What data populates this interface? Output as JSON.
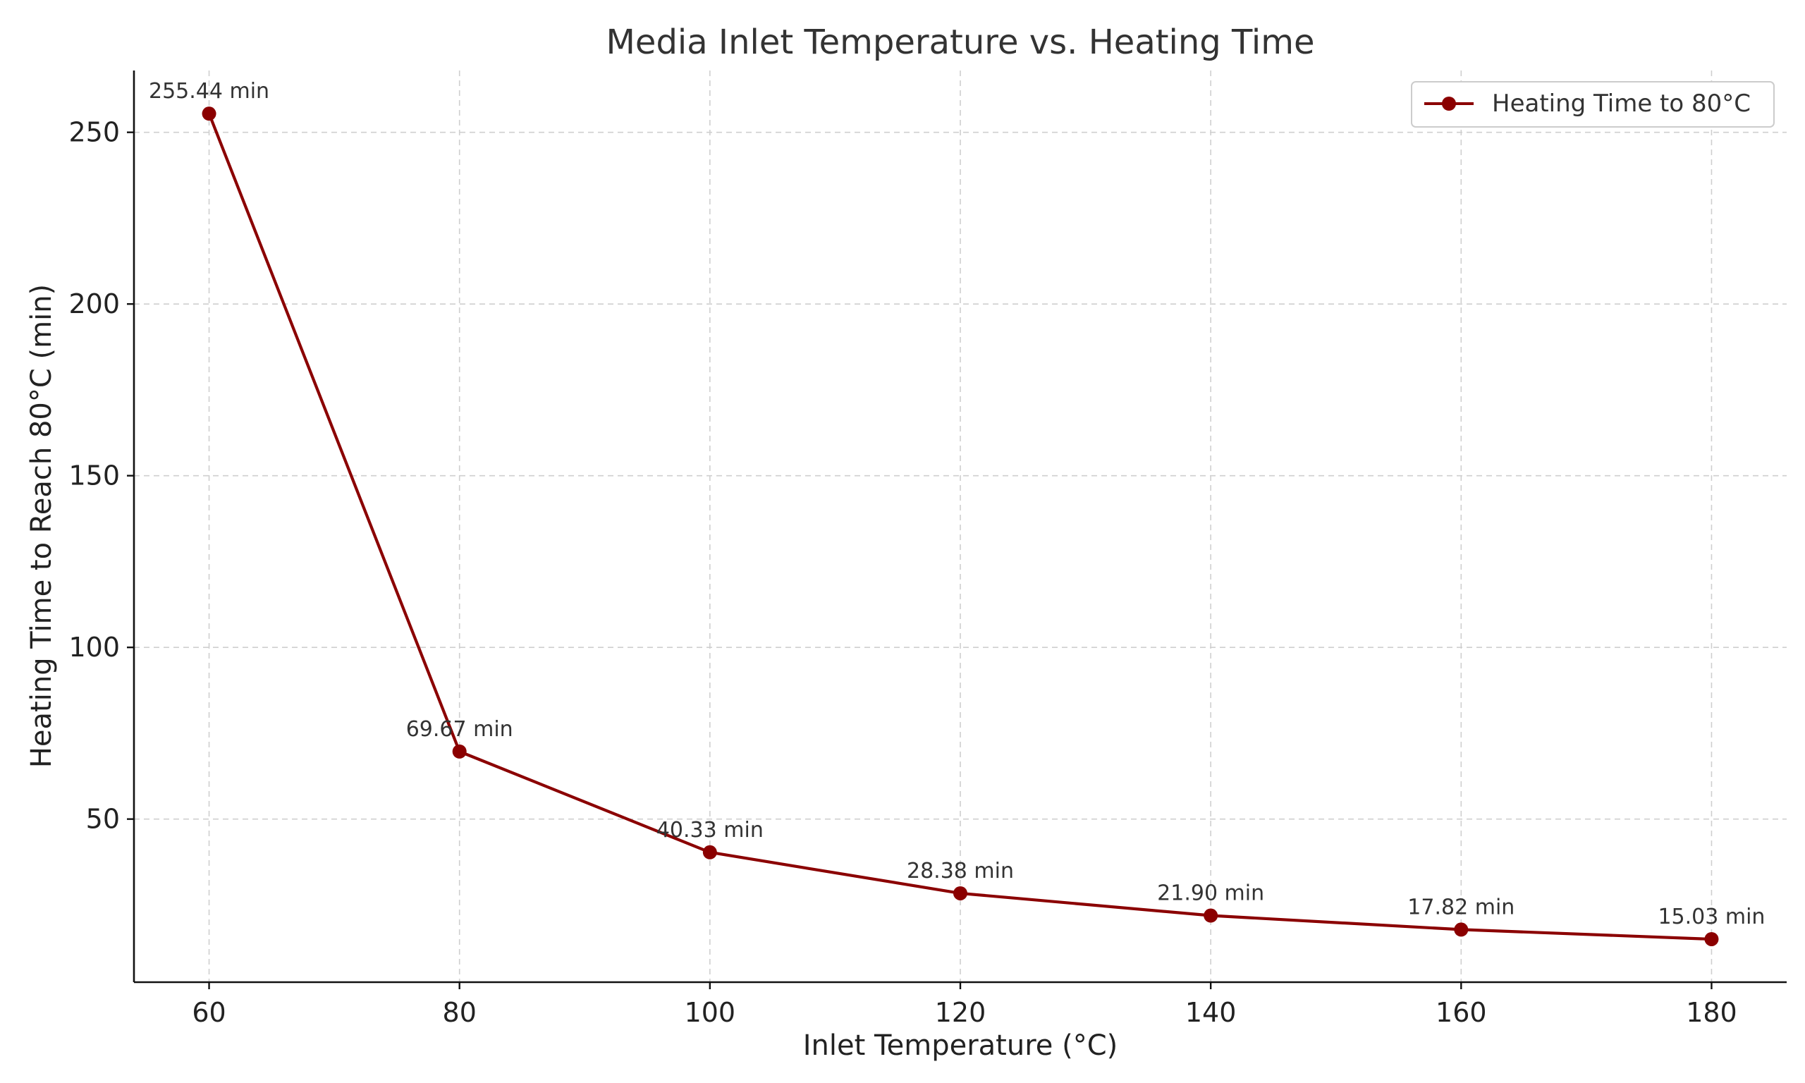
{
  "chart_data": {
    "type": "line",
    "title": "Media Inlet Temperature vs. Heating Time",
    "xlabel": "Inlet Temperature (°C)",
    "ylabel": "Heating Time to Reach 80°C (min)",
    "x": [
      60,
      80,
      100,
      120,
      140,
      160,
      180
    ],
    "x_ticks": [
      60,
      80,
      100,
      120,
      140,
      160,
      180
    ],
    "y_ticks": [
      50,
      100,
      150,
      200,
      250
    ],
    "xlim": [
      54,
      186
    ],
    "ylim": [
      2.5,
      268
    ],
    "grid": true,
    "legend_position": "top-right",
    "series": [
      {
        "name": "Heating Time to 80°C",
        "color": "#8b0000",
        "marker": "circle",
        "values": [
          255.44,
          69.67,
          40.33,
          28.38,
          21.9,
          17.82,
          15.03
        ],
        "labels": [
          "255.44 min",
          "69.67 min",
          "40.33 min",
          "28.38 min",
          "21.90 min",
          "17.82 min",
          "15.03 min"
        ]
      }
    ]
  }
}
